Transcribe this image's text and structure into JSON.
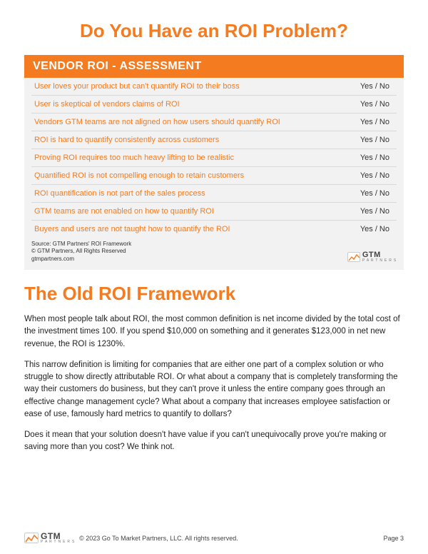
{
  "colors": {
    "accent": "#f47b20",
    "header_bg": "#f47b20",
    "box_bg": "#f2f2f2",
    "row_border": "#d9d9d9",
    "text": "#333333"
  },
  "heading1": "Do You Have an ROI Problem?",
  "assessment": {
    "title": "VENDOR ROI - ASSESSMENT",
    "answer_label": "Yes / No",
    "rows": [
      "User loves your product but can't quantify ROI to their boss",
      "User is skeptical of vendors claims of ROI",
      "Vendors GTM teams are not aligned on how users should quantify ROI",
      "ROI is hard to quantify consistently across customers",
      "Proving ROI requires too much heavy lifting to be realistic",
      "Quantified ROI is not compelling enough to retain customers",
      "ROI quantification is not part of the sales process",
      "GTM teams are not enabled on how to quantify ROI",
      "Buyers and users are not taught how to quantify the ROI"
    ],
    "source_line1": "Source: GTM Partners' ROI Framework",
    "source_line2": "© GTM Partners, All Rights Reserved",
    "source_line3": "gtmpartners.com"
  },
  "logo": {
    "text": "GTM",
    "sub": "P A R T N E R S"
  },
  "heading2": "The Old ROI Framework",
  "body": {
    "p1": "When most people talk about ROI, the most common definition is net income divided by the total cost of the investment times 100. If you spend $10,000 on something and it generates $123,000 in net new revenue, the ROI is 1230%.",
    "p2": "This narrow definition is limiting for companies that are either one part of a complex solution or who struggle to show directly attributable ROI. Or what about a company that is completely transforming the way their customers do business, but they can't prove it unless the entire company goes through an effective change management cycle? What about a company that increases employee satisfaction or ease of use, famously hard metrics to quantify to dollars?",
    "p3": "Does it mean that your solution doesn't have value if you can't unequivocally prove you're making or saving more than you cost? We think not."
  },
  "footer": {
    "copyright": "© 2023 Go To Market Partners, LLC. All rights reserved.",
    "page": "Page 3"
  }
}
